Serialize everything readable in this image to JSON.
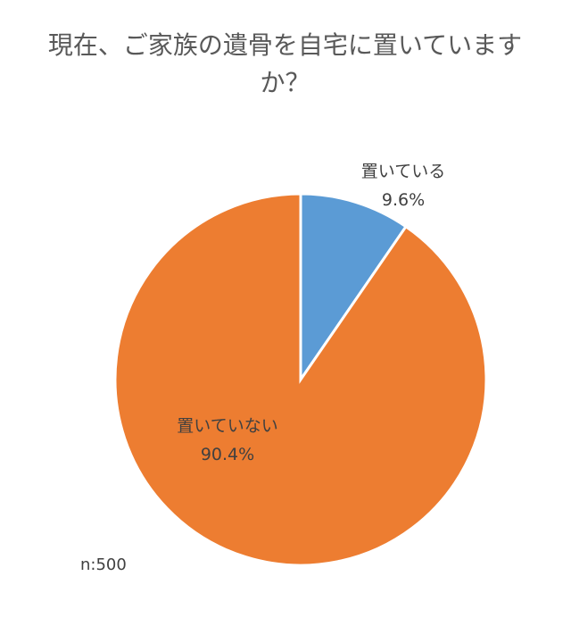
{
  "chart_data": {
    "type": "pie",
    "title": "現在、ご家族の遺骨を自宅に置いていますか？",
    "slices": [
      {
        "label": "置いている",
        "value": 9.6,
        "display": "9.6%",
        "color": "#5B9BD5"
      },
      {
        "label": "置いていない",
        "value": 90.4,
        "display": "90.4%",
        "color": "#ED7D31"
      }
    ],
    "start_angle": "12 o'clock",
    "direction": "clockwise",
    "note": "n:500"
  }
}
